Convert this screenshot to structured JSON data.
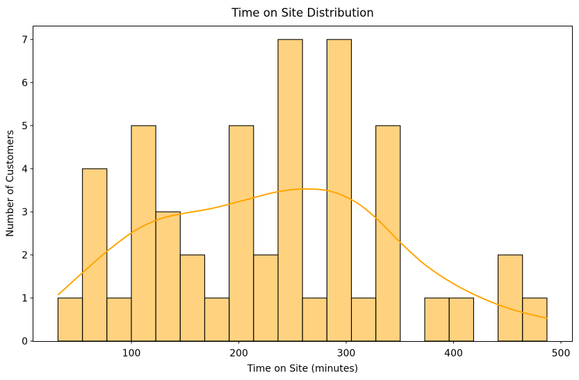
{
  "chart_data": {
    "type": "bar",
    "subtype": "histogram_with_kde",
    "title": "Time on Site Distribution",
    "xlabel": "Time on Site (minutes)",
    "ylabel": "Number of Customers",
    "bin_start": 31.6,
    "bin_width": 22.77,
    "counts": [
      1,
      4,
      1,
      5,
      3,
      2,
      1,
      5,
      2,
      7,
      1,
      7,
      1,
      5,
      0,
      1,
      1,
      0,
      2,
      1
    ],
    "kde_points": [
      [
        32,
        1.08
      ],
      [
        55,
        1.6
      ],
      [
        79,
        2.12
      ],
      [
        103,
        2.56
      ],
      [
        127,
        2.84
      ],
      [
        150,
        2.97
      ],
      [
        175,
        3.08
      ],
      [
        205,
        3.27
      ],
      [
        235,
        3.46
      ],
      [
        260,
        3.53
      ],
      [
        285,
        3.48
      ],
      [
        308,
        3.24
      ],
      [
        328,
        2.85
      ],
      [
        350,
        2.3
      ],
      [
        372,
        1.8
      ],
      [
        394,
        1.42
      ],
      [
        416,
        1.12
      ],
      [
        440,
        0.86
      ],
      [
        462,
        0.68
      ],
      [
        487,
        0.53
      ]
    ],
    "xticks": [
      100,
      200,
      300,
      400,
      500
    ],
    "yticks": [
      0,
      1,
      2,
      3,
      4,
      5,
      6,
      7
    ],
    "xlim": [
      8,
      511
    ],
    "ylim": [
      0,
      7.32
    ],
    "grid": false,
    "legend": null,
    "colors": {
      "bar_fill": "#FFA500",
      "bar_fill_alpha": 0.5,
      "bar_edge": "#000000",
      "kde_line": "#FFA500",
      "spine": "#000000",
      "text": "#000000",
      "background": "#ffffff"
    }
  }
}
